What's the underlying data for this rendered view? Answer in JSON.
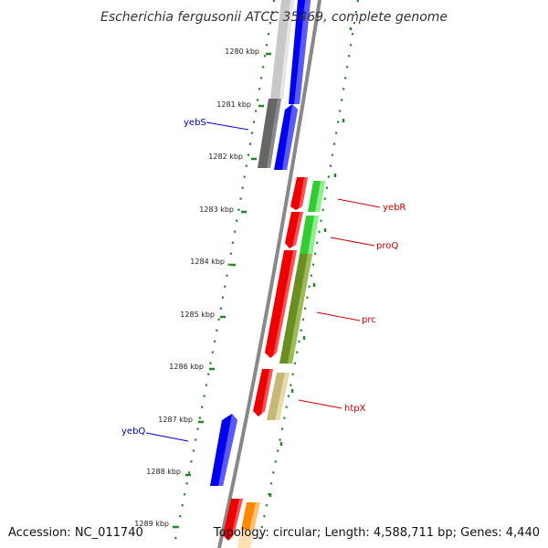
{
  "title": "Escherichia fergusonii ATCC 35469, complete genome",
  "footer": {
    "accession": "Accession: NC_011740",
    "topology": "Topology: circular; Length: 4,588,711 bp; Genes: 4,440"
  },
  "ticks": [
    {
      "label": "1280 kbp"
    },
    {
      "label": "1281 kbp"
    },
    {
      "label": "1282 kbp"
    },
    {
      "label": "1283 kbp"
    },
    {
      "label": "1284 kbp"
    },
    {
      "label": "1285 kbp"
    },
    {
      "label": "1286 kbp"
    },
    {
      "label": "1287 kbp"
    },
    {
      "label": "1288 kbp"
    },
    {
      "label": "1289 kbp"
    }
  ],
  "gene_labels": [
    {
      "name": "yebS",
      "color": "#0000aa"
    },
    {
      "name": "yebR",
      "color": "#cc0000"
    },
    {
      "name": "proQ",
      "color": "#cc0000"
    },
    {
      "name": "prc",
      "color": "#cc0000"
    },
    {
      "name": "htpX",
      "color": "#cc0000"
    },
    {
      "name": "yebQ",
      "color": "#0000aa"
    }
  ],
  "colors": {
    "forward_cds": "#ee0000",
    "reverse_cds": "#0000ee",
    "backbone": "#888888",
    "tick": "#228822",
    "green_feature": "#33cc33",
    "olive_feature": "#6b8e23",
    "khaki_feature": "#c8b878",
    "orange_feature": "#ff8800",
    "gray_feature": "#666666"
  }
}
